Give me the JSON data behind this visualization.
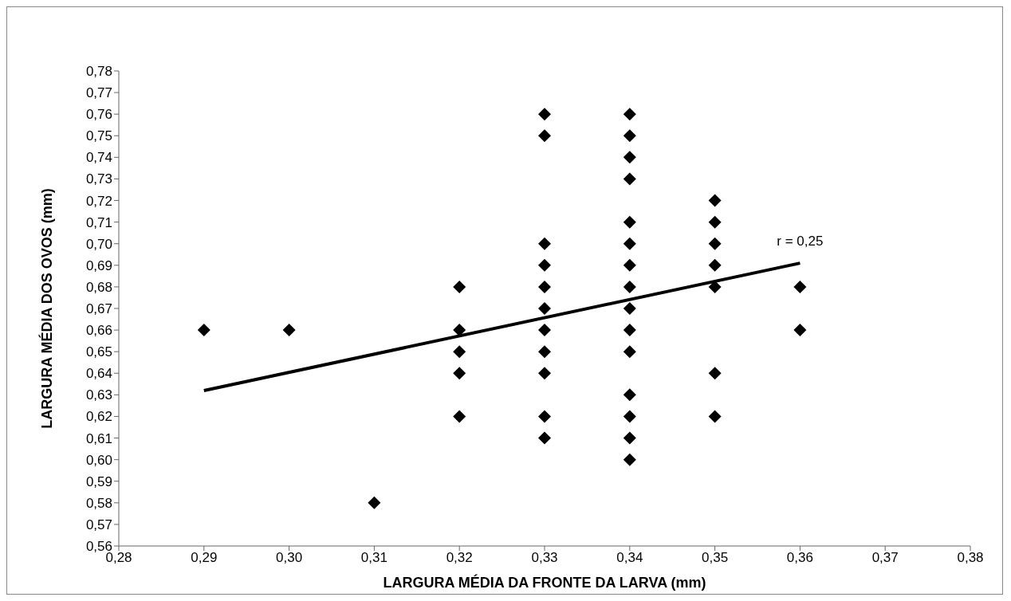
{
  "chart_data": {
    "type": "scatter",
    "xlabel": "LARGURA MÉDIA DA FRONTE DA LARVA (mm)",
    "ylabel": "LARGURA MÉDIA DOS OVOS (mm)",
    "xlim": [
      0.28,
      0.38
    ],
    "xticks": [
      {
        "value": 0.28,
        "label": "0,28"
      },
      {
        "value": 0.29,
        "label": "0,29"
      },
      {
        "value": 0.3,
        "label": "0,30"
      },
      {
        "value": 0.31,
        "label": "0,31"
      },
      {
        "value": 0.32,
        "label": "0,32"
      },
      {
        "value": 0.33,
        "label": "0,33"
      },
      {
        "value": 0.34,
        "label": "0,34"
      },
      {
        "value": 0.35,
        "label": "0,35"
      },
      {
        "value": 0.36,
        "label": "0,36"
      },
      {
        "value": 0.37,
        "label": "0,37"
      },
      {
        "value": 0.38,
        "label": "0,38"
      }
    ],
    "ylim": [
      0.56,
      0.78
    ],
    "yticks": [
      {
        "value": 0.56,
        "label": "0,56"
      },
      {
        "value": 0.57,
        "label": "0,57"
      },
      {
        "value": 0.58,
        "label": "0,58"
      },
      {
        "value": 0.59,
        "label": "0,59"
      },
      {
        "value": 0.6,
        "label": "0,60"
      },
      {
        "value": 0.61,
        "label": "0,61"
      },
      {
        "value": 0.62,
        "label": "0,62"
      },
      {
        "value": 0.63,
        "label": "0,63"
      },
      {
        "value": 0.64,
        "label": "0,64"
      },
      {
        "value": 0.65,
        "label": "0,65"
      },
      {
        "value": 0.66,
        "label": "0,66"
      },
      {
        "value": 0.67,
        "label": "0,67"
      },
      {
        "value": 0.68,
        "label": "0,68"
      },
      {
        "value": 0.69,
        "label": "0,69"
      },
      {
        "value": 0.7,
        "label": "0,70"
      },
      {
        "value": 0.71,
        "label": "0,71"
      },
      {
        "value": 0.72,
        "label": "0,72"
      },
      {
        "value": 0.73,
        "label": "0,73"
      },
      {
        "value": 0.74,
        "label": "0,74"
      },
      {
        "value": 0.75,
        "label": "0,75"
      },
      {
        "value": 0.76,
        "label": "0,76"
      },
      {
        "value": 0.77,
        "label": "0,77"
      },
      {
        "value": 0.78,
        "label": "0,78"
      }
    ],
    "grid": false,
    "marker": "diamond",
    "series": [
      {
        "color": "#000000",
        "x": [
          0.29,
          0.3,
          0.31,
          0.32,
          0.32,
          0.32,
          0.32,
          0.32,
          0.33,
          0.33,
          0.33,
          0.33,
          0.33,
          0.33,
          0.33,
          0.33,
          0.33,
          0.33,
          0.33,
          0.34,
          0.34,
          0.34,
          0.34,
          0.34,
          0.34,
          0.34,
          0.34,
          0.34,
          0.34,
          0.34,
          0.34,
          0.34,
          0.34,
          0.34,
          0.35,
          0.35,
          0.35,
          0.35,
          0.35,
          0.35,
          0.35,
          0.36,
          0.36
        ],
        "values": [
          0.66,
          0.66,
          0.58,
          0.68,
          0.66,
          0.65,
          0.64,
          0.62,
          0.76,
          0.75,
          0.7,
          0.69,
          0.68,
          0.67,
          0.66,
          0.65,
          0.64,
          0.62,
          0.61,
          0.76,
          0.75,
          0.74,
          0.73,
          0.71,
          0.7,
          0.69,
          0.68,
          0.67,
          0.66,
          0.65,
          0.63,
          0.62,
          0.61,
          0.6,
          0.72,
          0.71,
          0.7,
          0.69,
          0.68,
          0.64,
          0.62,
          0.68,
          0.66
        ]
      },
      {
        "type": "line",
        "marker": "none",
        "color": "#000000",
        "x": [
          0.29,
          0.36
        ],
        "values": [
          0.632,
          0.691
        ]
      }
    ],
    "annotations": [
      "r = 0,25"
    ]
  }
}
